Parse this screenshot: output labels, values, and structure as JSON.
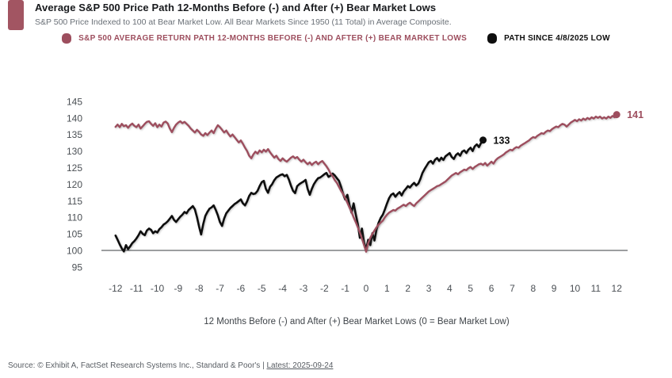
{
  "header": {
    "title": "Average S&P 500 Price Path 12-Months Before (-) and After (+) Bear Market Lows",
    "subtitle": "S&P 500 Price Indexed to 100 at Bear Market Low. All Bear Markets Since 1950 (11 Total) in Average Composite.",
    "accent_color": "#a25562"
  },
  "legend": {
    "items": [
      {
        "label": "S&P 500 AVERAGE RETURN PATH 12-MONTHS BEFORE (-) AND AFTER (+) BEAR MARKET LOWS",
        "color": "#9d4e5e"
      },
      {
        "label": "PATH SINCE 4/8/2025 LOW",
        "color": "#0e0e0e"
      }
    ]
  },
  "chart_data": {
    "type": "line",
    "title": "Average S&P 500 Price Path 12-Months Before (-) and After (+) Bear Market Lows",
    "xlabel": "12 Months Before (-) and After (+) Bear Market Lows (0 = Bear Market Low)",
    "ylabel": "",
    "xlim": [
      -12.7,
      12.7
    ],
    "ylim": [
      93,
      147
    ],
    "grid": false,
    "legend_position": "top-center",
    "baseline_value": 100,
    "x_ticks": [
      -12,
      -11,
      -10,
      -9,
      -8,
      -7,
      -6,
      -5,
      -4,
      -3,
      -2,
      -1,
      0,
      1,
      2,
      3,
      4,
      5,
      6,
      7,
      8,
      9,
      10,
      11,
      12
    ],
    "y_ticks": [
      95,
      100,
      105,
      110,
      115,
      120,
      125,
      130,
      135,
      140,
      145
    ],
    "series": [
      {
        "name": "S&P 500 average return path 12-months before (-) and after (+) bear market lows",
        "color": "#9d4e5e",
        "stroke_width": 2.4,
        "end_label": "141",
        "x_start": -12,
        "x_step": 0.1,
        "values": [
          137.3,
          138.0,
          137.2,
          138.2,
          137.5,
          137.8,
          137.0,
          137.8,
          138.3,
          137.6,
          137.2,
          138.0,
          136.8,
          137.5,
          138.2,
          138.8,
          139.0,
          138.2,
          137.6,
          138.4,
          137.2,
          138.0,
          137.4,
          138.6,
          138.9,
          138.3,
          136.8,
          135.7,
          137.0,
          138.0,
          138.6,
          139.0,
          138.4,
          138.8,
          138.2,
          137.6,
          136.8,
          136.2,
          135.6,
          136.4,
          135.8,
          135.0,
          134.6,
          135.4,
          134.8,
          135.6,
          136.2,
          135.4,
          136.8,
          137.8,
          137.2,
          136.4,
          135.6,
          136.2,
          135.2,
          134.4,
          135.0,
          134.2,
          133.4,
          132.6,
          133.2,
          132.2,
          131.0,
          130.0,
          128.6,
          127.8,
          129.0,
          129.8,
          129.2,
          130.2,
          129.6,
          130.4,
          129.8,
          130.6,
          129.6,
          128.8,
          128.0,
          128.6,
          127.6,
          127.0,
          127.8,
          127.2,
          126.8,
          127.4,
          128.0,
          128.4,
          127.8,
          128.2,
          127.4,
          126.8,
          127.4,
          126.6,
          126.0,
          126.6,
          125.8,
          126.4,
          126.8,
          126.0,
          126.6,
          127.0,
          126.2,
          125.4,
          124.4,
          123.2,
          122.4,
          121.2,
          120.4,
          119.2,
          118.0,
          117.0,
          115.8,
          114.4,
          113.0,
          111.6,
          110.0,
          108.6,
          107.0,
          105.4,
          103.6,
          101.6,
          99.6,
          102.2,
          103.8,
          105.0,
          106.0,
          107.0,
          107.8,
          108.4,
          109.0,
          110.0,
          110.8,
          111.4,
          111.8,
          112.2,
          112.0,
          112.6,
          113.0,
          113.4,
          113.8,
          113.4,
          114.0,
          114.4,
          113.8,
          113.4,
          114.2,
          114.8,
          115.4,
          116.0,
          116.6,
          117.2,
          117.8,
          118.2,
          118.6,
          119.0,
          119.4,
          119.6,
          120.0,
          120.4,
          120.8,
          121.4,
          122.0,
          122.6,
          123.0,
          123.4,
          123.0,
          123.6,
          124.0,
          124.4,
          124.2,
          124.8,
          125.2,
          124.6,
          125.2,
          125.6,
          126.0,
          126.2,
          125.8,
          126.4,
          125.6,
          126.2,
          126.8,
          126.2,
          127.2,
          127.8,
          128.2,
          128.6,
          129.0,
          129.6,
          130.0,
          130.4,
          130.2,
          130.8,
          131.2,
          131.0,
          131.6,
          132.0,
          132.4,
          132.8,
          133.2,
          133.8,
          134.2,
          134.0,
          134.6,
          135.0,
          135.4,
          135.2,
          135.8,
          136.2,
          136.0,
          136.6,
          137.0,
          137.4,
          137.2,
          137.8,
          138.2,
          138.0,
          137.4,
          138.0,
          138.6,
          139.0,
          139.4,
          139.0,
          139.6,
          139.2,
          139.8,
          139.4,
          140.0,
          139.6,
          140.2,
          139.8,
          140.4,
          140.0,
          140.4,
          139.8,
          140.2,
          139.8,
          140.4,
          140.0,
          140.6,
          140.2,
          141.0
        ]
      },
      {
        "name": "Path since 4/8/2025 low",
        "color": "#0e0e0e",
        "stroke_width": 2.6,
        "end_label": "133",
        "x_start": -12,
        "x_step": 0.1,
        "values": [
          104.5,
          103.2,
          101.8,
          100.6,
          99.7,
          101.6,
          100.4,
          101.2,
          102.2,
          102.8,
          103.6,
          104.6,
          105.8,
          105.0,
          104.6,
          106.0,
          106.6,
          106.2,
          105.2,
          105.8,
          105.4,
          106.4,
          107.0,
          107.8,
          108.2,
          108.8,
          109.6,
          110.4,
          109.2,
          108.6,
          109.4,
          110.2,
          110.8,
          111.6,
          111.2,
          112.2,
          112.8,
          113.4,
          112.4,
          110.0,
          107.2,
          104.8,
          108.0,
          110.4,
          111.6,
          112.6,
          113.0,
          113.6,
          112.2,
          110.6,
          108.6,
          107.4,
          109.6,
          111.2,
          112.0,
          112.8,
          113.4,
          114.0,
          114.4,
          114.9,
          115.4,
          114.2,
          113.6,
          114.8,
          116.4,
          117.4,
          117.0,
          117.2,
          118.0,
          119.4,
          120.6,
          121.0,
          118.6,
          117.4,
          119.2,
          120.0,
          121.2,
          122.0,
          122.4,
          122.8,
          123.0,
          122.4,
          122.8,
          121.4,
          119.6,
          118.0,
          117.3,
          119.4,
          120.0,
          120.4,
          120.8,
          121.3,
          118.6,
          116.8,
          118.6,
          120.0,
          121.0,
          121.8,
          122.0,
          122.5,
          123.0,
          123.4,
          122.2,
          122.6,
          123.2,
          122.6,
          121.8,
          121.0,
          119.2,
          117.0,
          115.4,
          116.8,
          113.8,
          111.4,
          114.2,
          111.0,
          108.0,
          103.8,
          106.6,
          102.4,
          100.3,
          103.2,
          101.6,
          105.2,
          103.0,
          106.4,
          108.4,
          109.8,
          110.8,
          112.4,
          114.2,
          115.8,
          116.8,
          117.2,
          116.2,
          117.0,
          117.6,
          116.6,
          117.8,
          118.6,
          119.4,
          119.0,
          119.8,
          120.4,
          119.6,
          120.2,
          121.6,
          123.4,
          124.6,
          125.6,
          126.6,
          127.0,
          126.2,
          127.4,
          127.9,
          127.0,
          128.0,
          127.3,
          128.4,
          128.9,
          129.4,
          128.2,
          127.6,
          128.8,
          129.3,
          128.6,
          129.8,
          130.2,
          129.4,
          130.4,
          131.0,
          130.0,
          131.4,
          132.0,
          131.2,
          132.4,
          133.3
        ]
      }
    ]
  },
  "footer": {
    "source_prefix": "Source: © Exhibit A, FactSet Research Systems Inc., Standard & Poor's | ",
    "latest": "Latest: 2025-09-24"
  }
}
